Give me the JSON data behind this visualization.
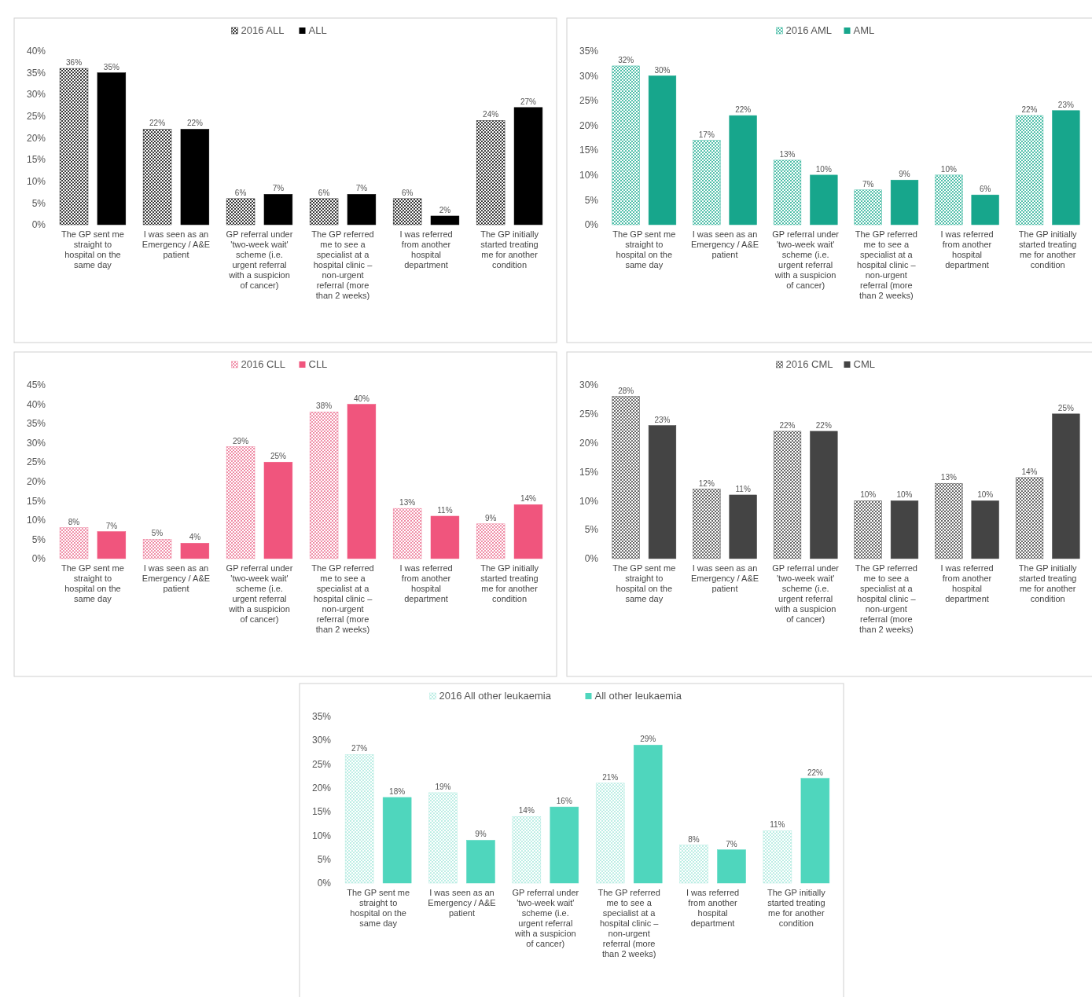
{
  "chart_data": [
    {
      "type": "bar",
      "categories": [
        "The GP sent me straight to hospital on the same day",
        "I was seen as an Emergency / A&E patient",
        "GP referral under 'two-week wait' scheme (i.e. urgent referral with a suspicion of cancer)",
        "The GP referred me to see a specialist at a hospital clinic – non-urgent referral (more than 2 weeks)",
        "I was referred from another hospital department",
        "The GP initially started treating me for another condition"
      ],
      "series": [
        {
          "name": "2016 ALL",
          "color": "#222222",
          "values": [
            36,
            22,
            6,
            6,
            6,
            24
          ],
          "value_labels": [
            "36%",
            "22%",
            "6%",
            "6%",
            "6%",
            "24%"
          ]
        },
        {
          "name": "ALL",
          "color": "#000000",
          "values": [
            35,
            22,
            7,
            7,
            2,
            27
          ],
          "value_labels": [
            "35%",
            "22%",
            "7%",
            "7%",
            "2%",
            "27%"
          ]
        }
      ],
      "ylim": [
        0,
        40
      ],
      "yticks": [
        {
          "value": 0,
          "label": "0%"
        },
        {
          "value": 5,
          "label": "5%"
        },
        {
          "value": 10,
          "label": "10%"
        },
        {
          "value": 15,
          "label": "15%"
        },
        {
          "value": 20,
          "label": "20%"
        },
        {
          "value": 25,
          "label": "25%"
        },
        {
          "value": 30,
          "label": "30%"
        },
        {
          "value": 35,
          "label": "35%"
        },
        {
          "value": 40,
          "label": "40%"
        }
      ],
      "legend": "top"
    },
    {
      "type": "bar",
      "categories": [
        "The GP sent me straight to hospital on the same day",
        "I was seen as an Emergency / A&E patient",
        "GP referral under 'two-week wait' scheme (i.e. urgent referral with a suspicion of cancer)",
        "The GP referred me to see a specialist at a hospital clinic – non-urgent referral (more than 2 weeks)",
        "I was referred from another hospital department",
        "The GP initially started treating me for another condition"
      ],
      "series": [
        {
          "name": "2016 AML",
          "color": "#3cb8a0",
          "values": [
            32,
            17,
            13,
            7,
            10,
            22
          ],
          "value_labels": [
            "32%",
            "17%",
            "13%",
            "7%",
            "10%",
            "22%"
          ]
        },
        {
          "name": "AML",
          "color": "#17a68c",
          "values": [
            30,
            22,
            10,
            9,
            6,
            23
          ],
          "value_labels": [
            "30%",
            "22%",
            "10%",
            "9%",
            "6%",
            "23%"
          ]
        }
      ],
      "ylim": [
        0,
        35
      ],
      "yticks": [
        {
          "value": 0,
          "label": "0%"
        },
        {
          "value": 5,
          "label": "5%"
        },
        {
          "value": 10,
          "label": "10%"
        },
        {
          "value": 15,
          "label": "15%"
        },
        {
          "value": 20,
          "label": "20%"
        },
        {
          "value": 25,
          "label": "25%"
        },
        {
          "value": 30,
          "label": "30%"
        },
        {
          "value": 35,
          "label": "35%"
        }
      ],
      "legend": "top"
    },
    {
      "type": "bar",
      "categories": [
        "The GP sent me straight to hospital on the same day",
        "I was seen as an Emergency / A&E patient",
        "GP referral under 'two-week wait' scheme (i.e. urgent referral with a suspicion of cancer)",
        "The GP referred me to see a specialist at a hospital clinic – non-urgent referral (more than 2 weeks)",
        "I was referred from another hospital department",
        "The GP initially started treating me for another condition"
      ],
      "series": [
        {
          "name": "2016 CLL",
          "color": "#ee7f9c",
          "values": [
            8,
            5,
            29,
            38,
            13,
            9
          ],
          "value_labels": [
            "8%",
            "5%",
            "29%",
            "38%",
            "13%",
            "9%"
          ]
        },
        {
          "name": "CLL",
          "color": "#f0557d",
          "values": [
            7,
            4,
            25,
            40,
            11,
            14
          ],
          "value_labels": [
            "7%",
            "4%",
            "25%",
            "40%",
            "11%",
            "14%"
          ]
        }
      ],
      "ylim": [
        0,
        45
      ],
      "yticks": [
        {
          "value": 0,
          "label": "0%"
        },
        {
          "value": 5,
          "label": "5%"
        },
        {
          "value": 10,
          "label": "10%"
        },
        {
          "value": 15,
          "label": "15%"
        },
        {
          "value": 20,
          "label": "20%"
        },
        {
          "value": 25,
          "label": "25%"
        },
        {
          "value": 30,
          "label": "30%"
        },
        {
          "value": 35,
          "label": "35%"
        },
        {
          "value": 40,
          "label": "40%"
        },
        {
          "value": 45,
          "label": "45%"
        }
      ],
      "legend": "top"
    },
    {
      "type": "bar",
      "categories": [
        "The GP sent me straight to hospital on the same day",
        "I was seen as an Emergency / A&E patient",
        "GP referral under 'two-week wait' scheme (i.e. urgent referral with a suspicion of cancer)",
        "The GP referred me to see a specialist at a hospital clinic – non-urgent referral (more than 2 weeks)",
        "I was referred from another hospital department",
        "The GP initially started treating me for another condition"
      ],
      "series": [
        {
          "name": "2016 CML",
          "color": "#555555",
          "values": [
            28,
            12,
            22,
            10,
            13,
            14
          ],
          "value_labels": [
            "28%",
            "12%",
            "22%",
            "10%",
            "13%",
            "14%"
          ]
        },
        {
          "name": "CML",
          "color": "#444444",
          "values": [
            23,
            11,
            22,
            10,
            10,
            25
          ],
          "value_labels": [
            "23%",
            "11%",
            "22%",
            "10%",
            "10%",
            "25%"
          ]
        }
      ],
      "ylim": [
        0,
        30
      ],
      "yticks": [
        {
          "value": 0,
          "label": "0%"
        },
        {
          "value": 5,
          "label": "5%"
        },
        {
          "value": 10,
          "label": "10%"
        },
        {
          "value": 15,
          "label": "15%"
        },
        {
          "value": 20,
          "label": "20%"
        },
        {
          "value": 25,
          "label": "25%"
        },
        {
          "value": 30,
          "label": "30%"
        }
      ],
      "legend": "top"
    },
    {
      "type": "bar",
      "categories": [
        "The GP sent me straight to hospital on the same day",
        "I was seen as an Emergency / A&E patient",
        "GP referral under 'two-week wait' scheme (i.e. urgent referral with a suspicion of cancer)",
        "The GP referred me to see a specialist at a hospital clinic – non-urgent referral (more than 2 weeks)",
        "I was referred from another hospital department",
        "The GP initially started treating me for another condition"
      ],
      "series": [
        {
          "name": "2016 All other leukaemia",
          "color": "#b5ece2",
          "values": [
            27,
            19,
            14,
            21,
            8,
            11
          ],
          "value_labels": [
            "27%",
            "19%",
            "14%",
            "21%",
            "8%",
            "11%"
          ]
        },
        {
          "name": "All other leukaemia",
          "color": "#4fd6bd",
          "values": [
            18,
            9,
            16,
            29,
            7,
            22
          ],
          "value_labels": [
            "18%",
            "9%",
            "16%",
            "29%",
            "7%",
            "22%"
          ]
        }
      ],
      "ylim": [
        0,
        35
      ],
      "yticks": [
        {
          "value": 0,
          "label": "0%"
        },
        {
          "value": 5,
          "label": "5%"
        },
        {
          "value": 10,
          "label": "10%"
        },
        {
          "value": 15,
          "label": "15%"
        },
        {
          "value": 20,
          "label": "20%"
        },
        {
          "value": 25,
          "label": "25%"
        },
        {
          "value": 30,
          "label": "30%"
        },
        {
          "value": 35,
          "label": "35%"
        }
      ],
      "legend": "top"
    }
  ]
}
